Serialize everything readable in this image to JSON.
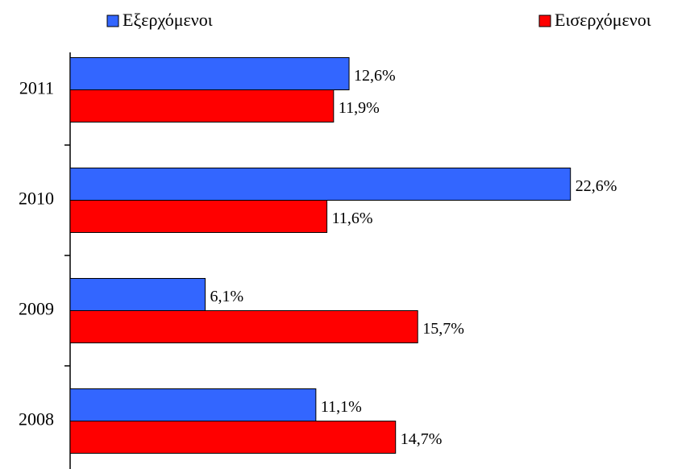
{
  "chart_data": {
    "type": "hbar",
    "categories": [
      "2011",
      "2010",
      "2009",
      "2008"
    ],
    "series": [
      {
        "name": "Εξερχόμενοι",
        "color": "#3366ff",
        "values": [
          12.6,
          22.6,
          6.1,
          11.1
        ],
        "value_labels": [
          "12,6%",
          "22,6%",
          "6,1%",
          "11,1%"
        ]
      },
      {
        "name": "Εισερχόμενοι",
        "color": "#ff0000",
        "values": [
          11.9,
          11.6,
          15.7,
          14.7
        ],
        "value_labels": [
          "11,9%",
          "11,6%",
          "15,7%",
          "14,7%"
        ]
      }
    ],
    "xlim": [
      0,
      28
    ],
    "legend": "top"
  }
}
